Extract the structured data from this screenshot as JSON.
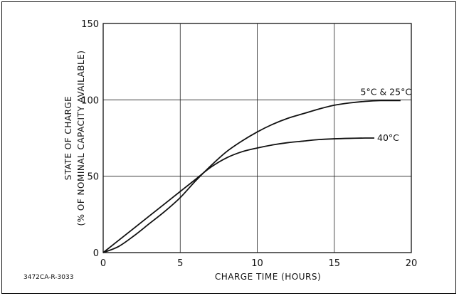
{
  "chart_data": {
    "type": "line",
    "title": "",
    "xlabel": "CHARGE TIME (HOURS)",
    "ylabel_line1": "STATE OF CHARGE",
    "ylabel_line2": "(% OF NOMINAL CAPACITY AVAILABLE)",
    "xlim": [
      0,
      20
    ],
    "ylim": [
      0,
      150
    ],
    "x_ticks": [
      0,
      5,
      10,
      15,
      20
    ],
    "y_ticks": [
      0,
      50,
      100,
      150
    ],
    "grid": true,
    "figure_id": "3472CA-R-3033",
    "series": [
      {
        "name": "5°C & 25°C",
        "x": [
          0,
          1,
          2,
          3,
          4,
          5,
          6,
          7,
          8,
          9,
          10,
          11,
          12,
          13,
          14,
          15,
          16,
          17,
          18,
          19.3
        ],
        "y": [
          0,
          4,
          11,
          19,
          27,
          36,
          47,
          57,
          66,
          73,
          79,
          84,
          88,
          91,
          94,
          96.5,
          98,
          99,
          99.5,
          99.5
        ]
      },
      {
        "name": "40°C",
        "x": [
          0,
          1,
          2,
          3,
          4,
          5,
          6,
          7,
          8,
          9,
          10,
          11,
          12,
          13,
          14,
          15,
          16,
          17,
          17.6
        ],
        "y": [
          0,
          8,
          16,
          24,
          32,
          40,
          48,
          56,
          62,
          66,
          68.5,
          70.5,
          72,
          73,
          74,
          74.5,
          74.8,
          75,
          75
        ]
      }
    ]
  }
}
